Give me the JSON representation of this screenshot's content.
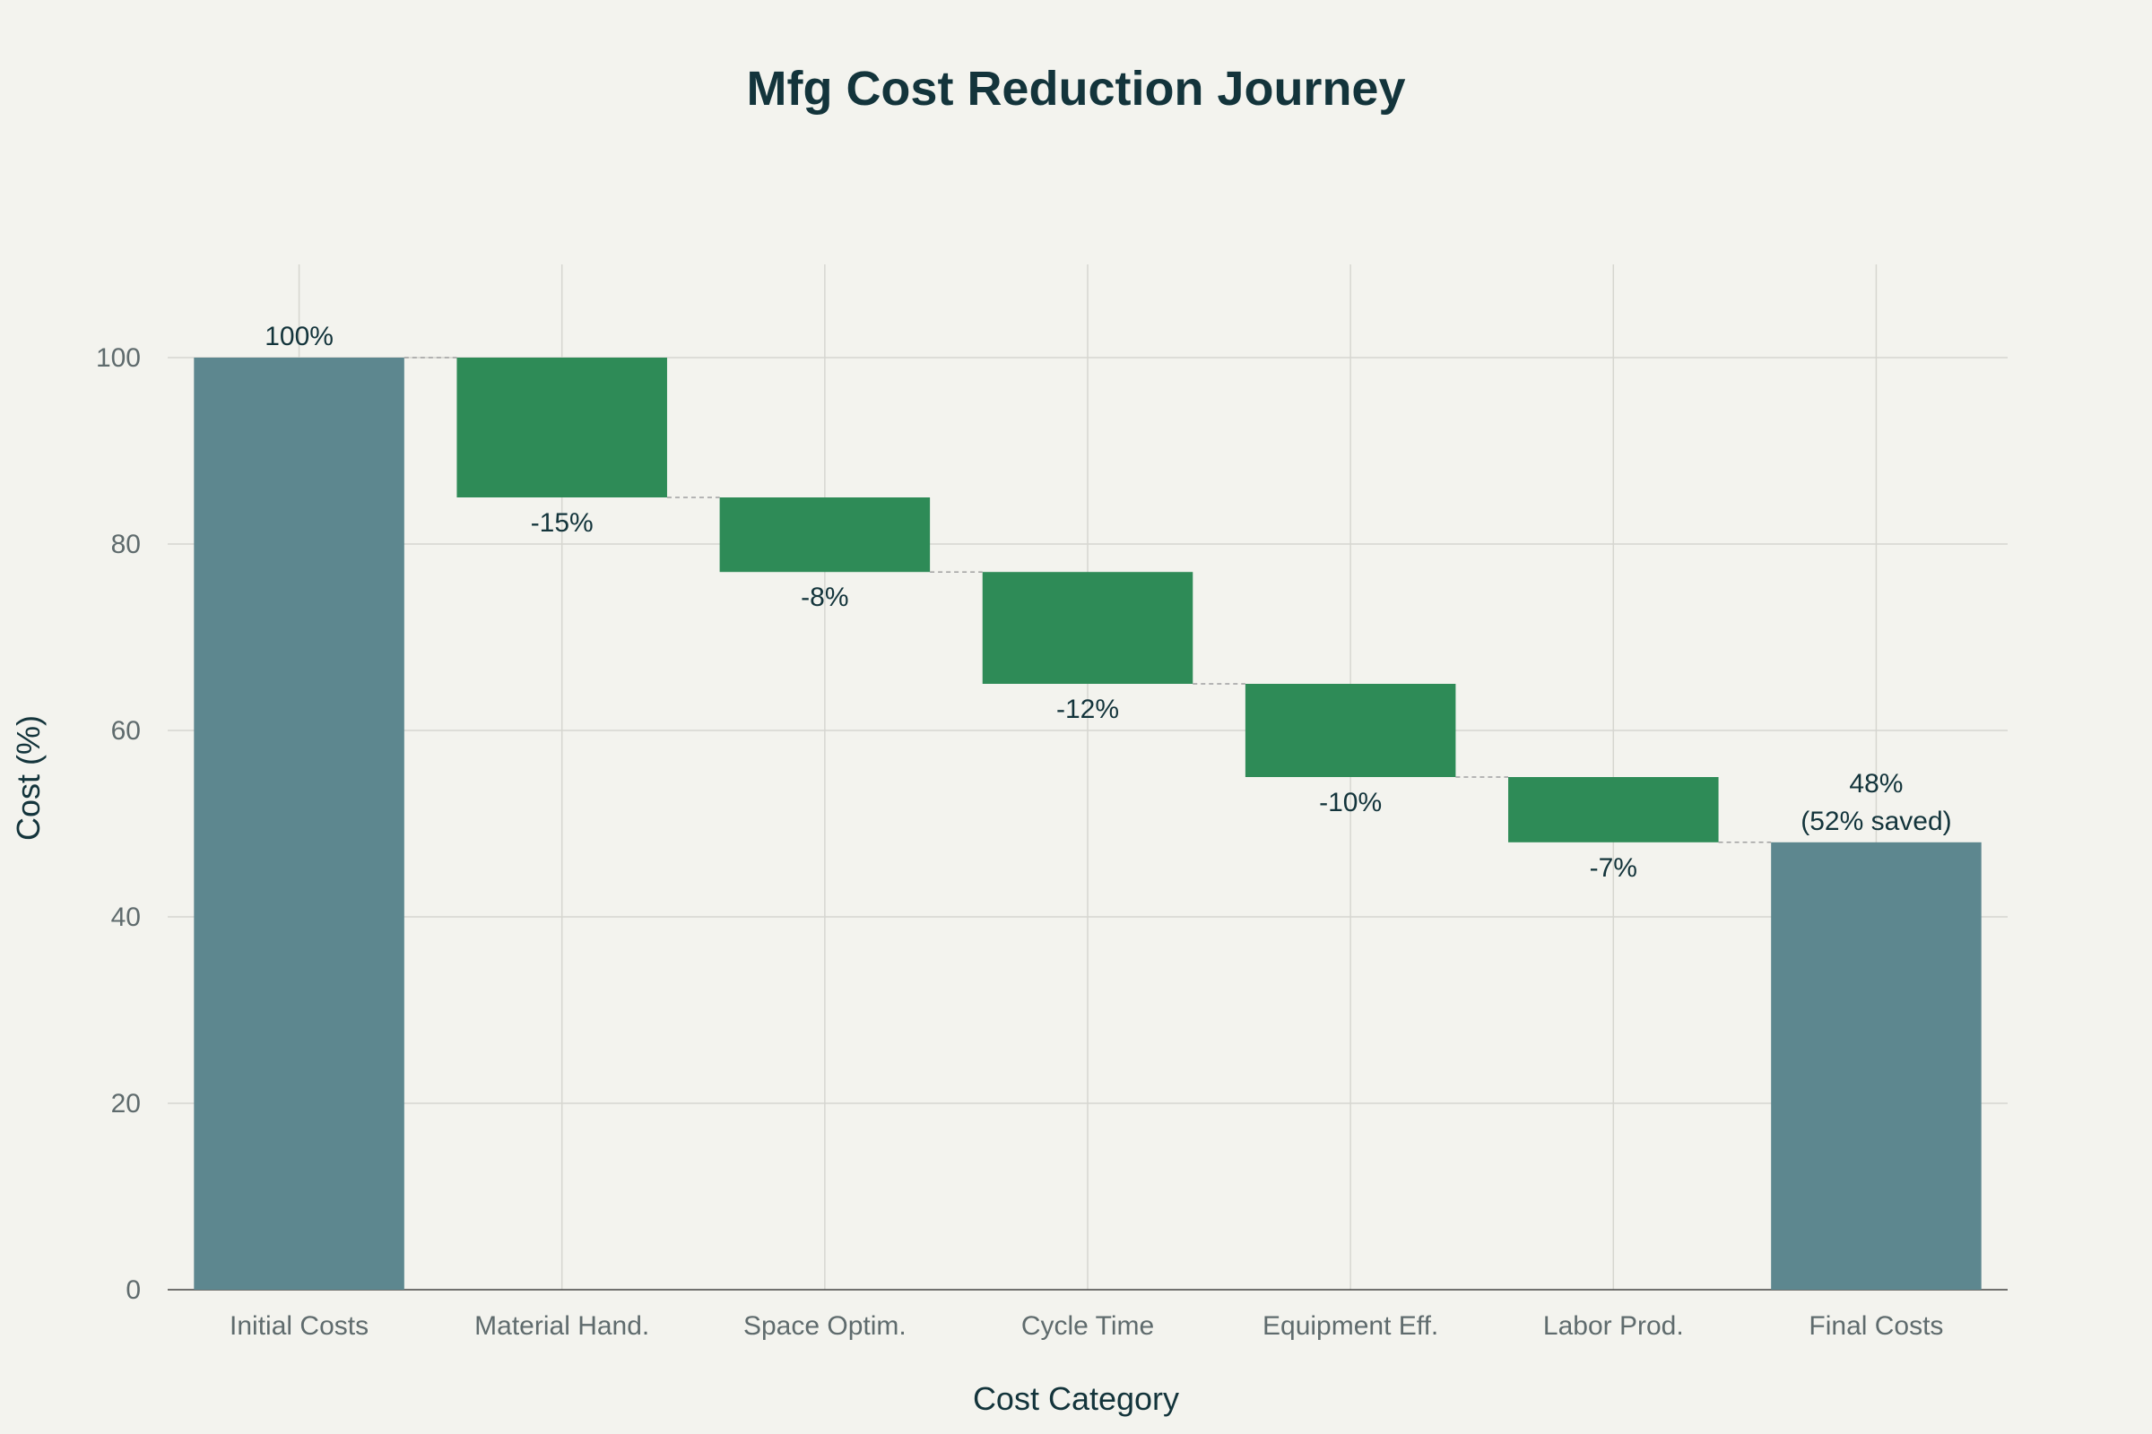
{
  "chart_data": {
    "type": "waterfall",
    "title": "Mfg Cost Reduction Journey",
    "xlabel": "Cost Category",
    "ylabel": "Cost (%)",
    "ylim": [
      0,
      110
    ],
    "yticks": [
      0,
      20,
      40,
      60,
      80,
      100
    ],
    "grid": true,
    "categories": [
      "Initial Costs",
      "Material Hand.",
      "Space Optim.",
      "Cycle Time",
      "Equipment Eff.",
      "Labor Prod.",
      "Final Costs"
    ],
    "measures": [
      "total",
      "relative",
      "relative",
      "relative",
      "relative",
      "relative",
      "total"
    ],
    "values": [
      100,
      -15,
      -8,
      -12,
      -10,
      -7,
      48
    ],
    "labels": [
      "100%",
      "-15%",
      "-8%",
      "-12%",
      "-10%",
      "-7%",
      "48%\n(52% saved)"
    ],
    "colors": {
      "total": "#5d878f",
      "decrease": "#2e8b57",
      "connector": "#a0a0a0",
      "grid": "#d6d6d0",
      "background": "#f3f3ee"
    }
  }
}
